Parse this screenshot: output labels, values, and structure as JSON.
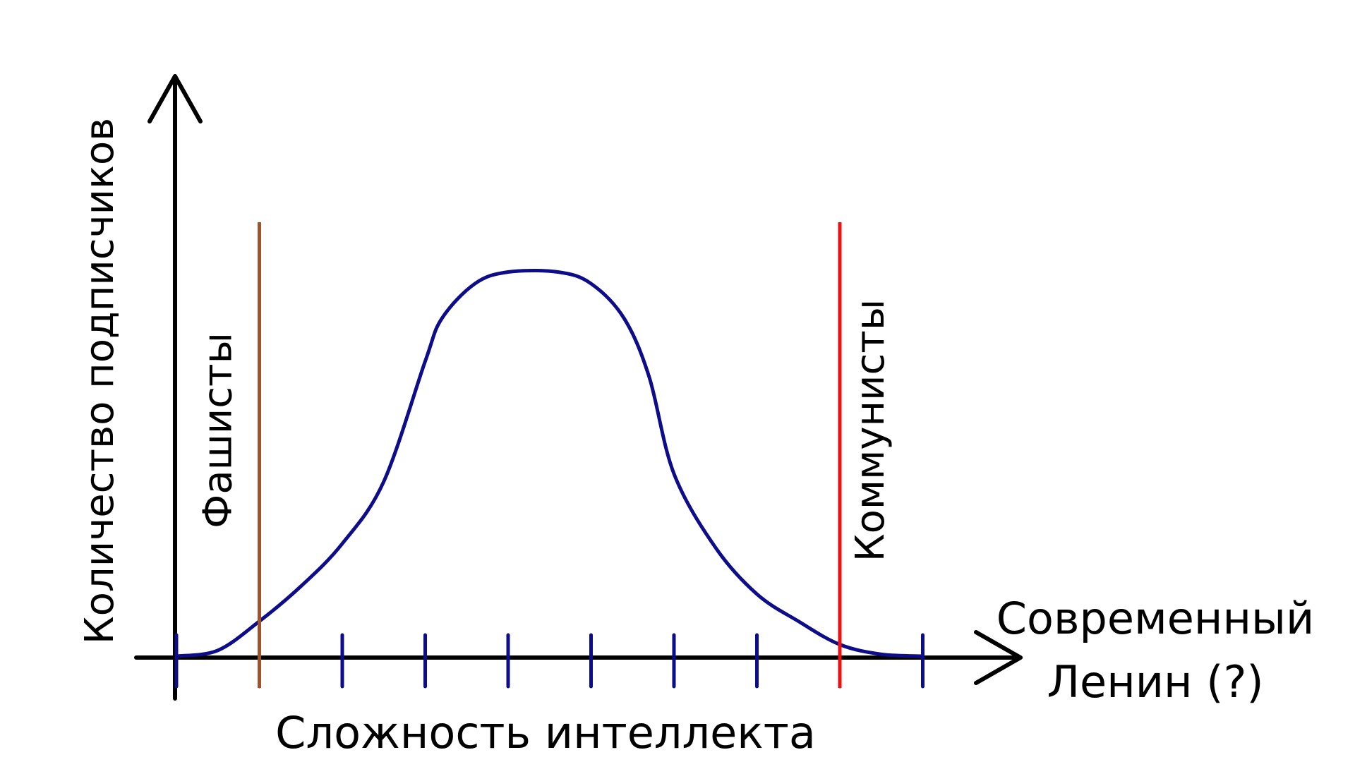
{
  "chart_data": {
    "type": "line",
    "title": "",
    "xlabel": "Сложность интеллекта",
    "ylabel": "Количество подписчиков",
    "x_ticks": 10,
    "grid": false,
    "legend": "none",
    "curve_color": "#0d0d8c",
    "axis_color": "#000000",
    "curve_points": [
      [
        0.0,
        0.0
      ],
      [
        0.5,
        0.015
      ],
      [
        1.0,
        0.09
      ],
      [
        1.5,
        0.18
      ],
      [
        2.0,
        0.29
      ],
      [
        2.5,
        0.45
      ],
      [
        3.0,
        0.76
      ],
      [
        3.2,
        0.87
      ],
      [
        3.6,
        0.96
      ],
      [
        4.0,
        0.99
      ],
      [
        4.6,
        0.99
      ],
      [
        5.0,
        0.96
      ],
      [
        5.4,
        0.87
      ],
      [
        5.7,
        0.72
      ],
      [
        6.0,
        0.47
      ],
      [
        6.5,
        0.28
      ],
      [
        7.0,
        0.16
      ],
      [
        7.5,
        0.09
      ],
      [
        8.0,
        0.03
      ],
      [
        8.5,
        0.005
      ],
      [
        9.0,
        0.0
      ]
    ],
    "markers": [
      {
        "name": "fascists",
        "label": "Фашисты",
        "x": 1.0,
        "color": "#a0522d"
      },
      {
        "name": "communists",
        "label": "Коммунисты",
        "x": 8.0,
        "color": "#ee1111"
      }
    ],
    "annotation": {
      "line1": "Современный",
      "line2": "Ленин (?)"
    }
  }
}
